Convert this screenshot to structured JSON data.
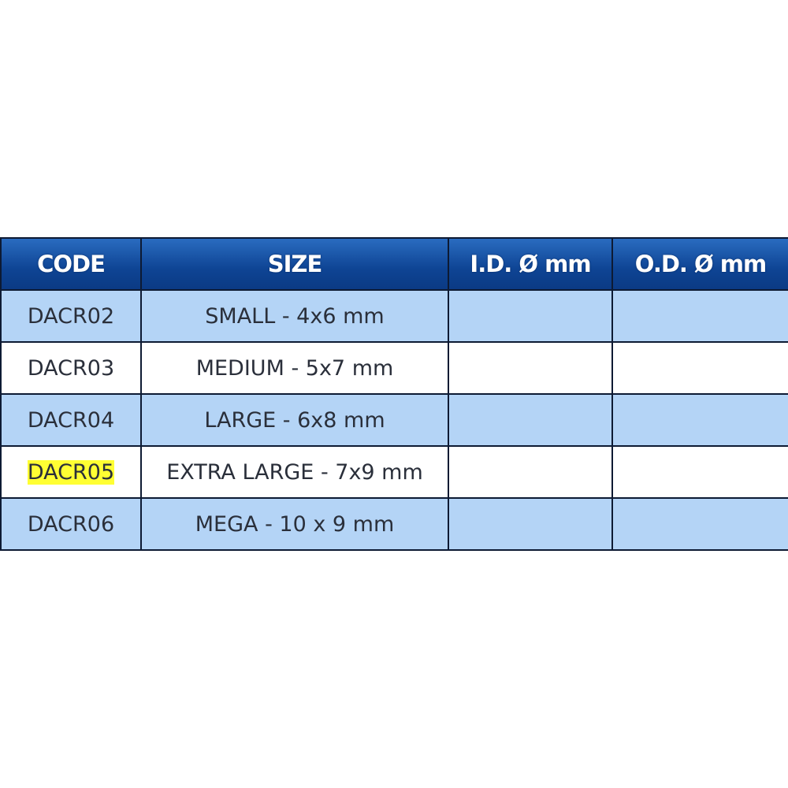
{
  "headers": [
    "CODE",
    "SIZE",
    "I.D. Ø mm",
    "O.D. Ø mm"
  ],
  "rows": [
    {
      "code": "DACR02",
      "size": "SMALL - 4x6 mm",
      "id": "",
      "od": ""
    },
    {
      "code": "DACR03",
      "size": "MEDIUM - 5x7 mm",
      "id": "",
      "od": ""
    },
    {
      "code": "DACR04",
      "size": "LARGE - 6x8 mm",
      "id": "",
      "od": ""
    },
    {
      "code": "DACR05",
      "size": "EXTRA LARGE - 7x9 mm",
      "id": "",
      "od": "",
      "highlighted": true
    },
    {
      "code": "DACR06",
      "size": "MEGA - 10 x 9 mm",
      "id": "",
      "od": ""
    }
  ],
  "colors": {
    "header": "#0e4494",
    "alt_row": "#b4d4f6",
    "highlight": "#ffff33"
  }
}
